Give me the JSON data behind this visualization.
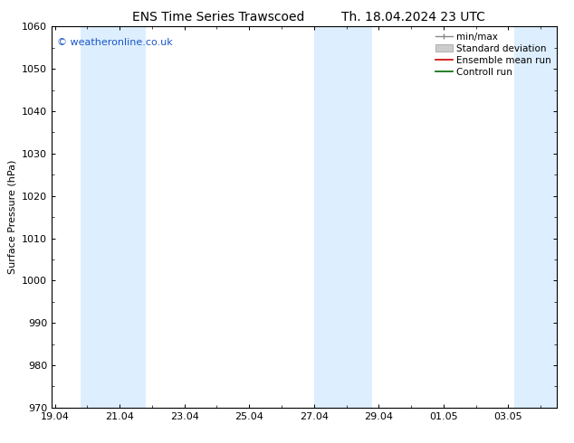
{
  "title_left": "ENS Time Series Trawscoed",
  "title_right": "Th. 18.04.2024 23 UTC",
  "ylabel": "Surface Pressure (hPa)",
  "ylim": [
    970,
    1060
  ],
  "yticks": [
    970,
    980,
    990,
    1000,
    1010,
    1020,
    1030,
    1040,
    1050,
    1060
  ],
  "xtick_labels": [
    "19.04",
    "21.04",
    "23.04",
    "25.04",
    "27.04",
    "29.04",
    "01.05",
    "03.05"
  ],
  "xtick_positions": [
    0,
    2,
    4,
    6,
    8,
    10,
    12,
    14
  ],
  "xlim": [
    -0.1,
    15.5
  ],
  "shaded_bands": [
    {
      "x_start": 0.8,
      "x_end": 2.8
    },
    {
      "x_start": 8.0,
      "x_end": 9.8
    },
    {
      "x_start": 14.2,
      "x_end": 15.5
    }
  ],
  "shade_color": "#ddeeff",
  "watermark_text": "© weatheronline.co.uk",
  "watermark_color": "#1a56c8",
  "legend_items": [
    {
      "label": "min/max",
      "color": "#aaaaaa",
      "style": "errorbar"
    },
    {
      "label": "Standard deviation",
      "color": "#cccccc",
      "style": "fill"
    },
    {
      "label": "Ensemble mean run",
      "color": "#cc0000",
      "style": "line"
    },
    {
      "label": "Controll run",
      "color": "#006600",
      "style": "line"
    }
  ],
  "bg_color": "#ffffff",
  "axis_color": "#000000",
  "tick_label_fontsize": 8,
  "axis_label_fontsize": 8,
  "title_fontsize": 10,
  "legend_fontsize": 7.5,
  "watermark_fontsize": 8
}
